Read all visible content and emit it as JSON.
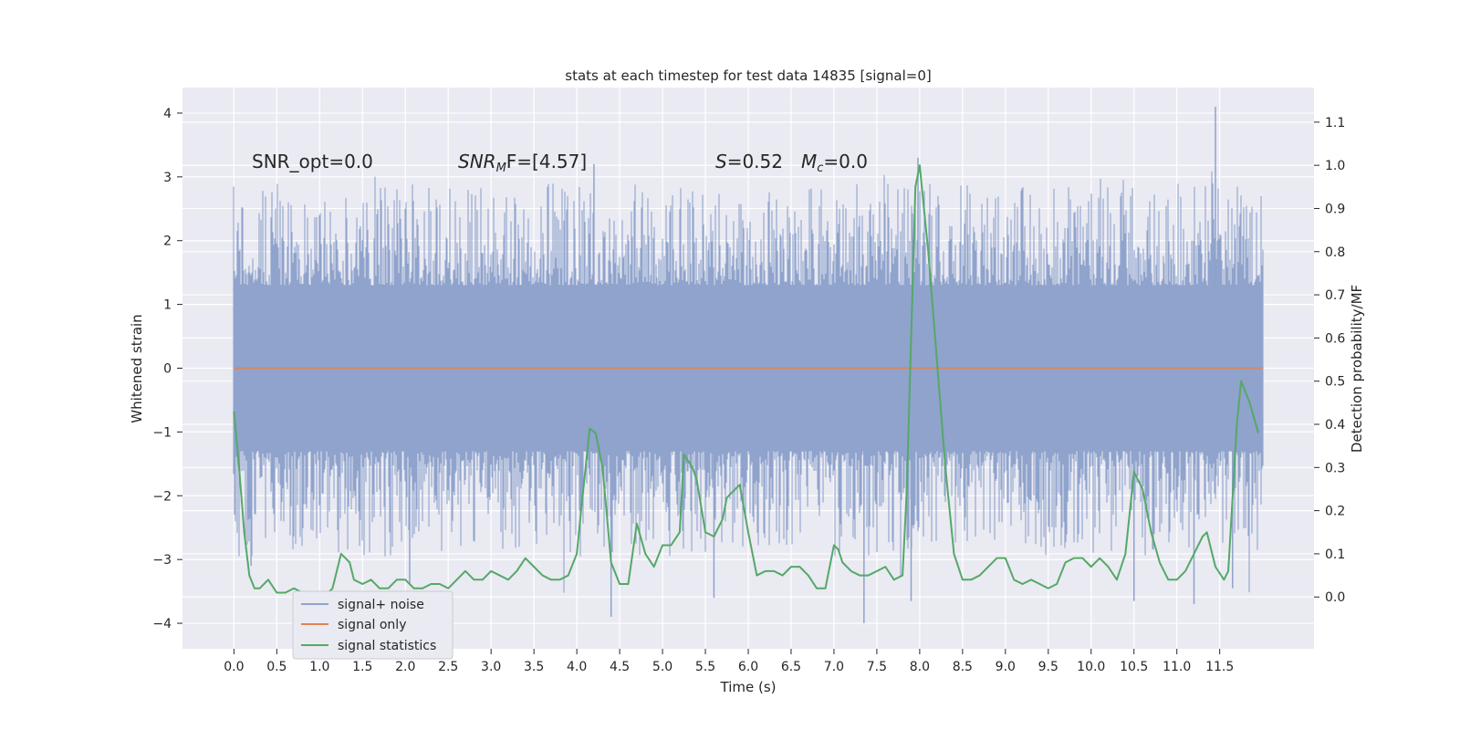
{
  "chart_data": {
    "type": "line",
    "title": "stats at each timestep for test data 14835 [signal=0]",
    "xlabel": "Time (s)",
    "ylabel_left": "Whitened strain",
    "ylabel_right": "Detection probability/MF",
    "xlim": [
      -0.6,
      12.6
    ],
    "ylim_left": [
      -4.4,
      4.4
    ],
    "ylim_right": [
      -0.12,
      1.18
    ],
    "x_ticks": [
      "0.0",
      "0.5",
      "1.0",
      "1.5",
      "2.0",
      "2.5",
      "3.0",
      "3.5",
      "4.0",
      "4.5",
      "5.0",
      "5.5",
      "6.0",
      "6.5",
      "7.0",
      "7.5",
      "8.0",
      "8.5",
      "9.0",
      "9.5",
      "10.0",
      "10.5",
      "11.0",
      "11.5"
    ],
    "y_ticks_left": [
      "4",
      "3",
      "2",
      "1",
      "0",
      "−1",
      "−2",
      "−3",
      "−4"
    ],
    "y_ticks_right": [
      "1.1",
      "1.0",
      "0.9",
      "0.8",
      "0.7",
      "0.6",
      "0.5",
      "0.4",
      "0.3",
      "0.2",
      "0.1",
      "0.0"
    ],
    "grid": true,
    "legend_position": "lower-left",
    "annotations": {
      "snr_opt": "SNR_opt=0.0",
      "snr_mf_main": "SNR",
      "snr_mf_sub": "M",
      "snr_mf_rest": "F=[4.57]",
      "s_italic": "S",
      "s_value": "=0.52",
      "mc_main": "M",
      "mc_sub": "c",
      "mc_value": "=0.0"
    },
    "series": [
      {
        "name": "signal+ noise",
        "color": "#8fa3cc",
        "axis": "left",
        "x_range": [
          0.0,
          12.0
        ],
        "typical_band": [
          -1.3,
          1.3
        ],
        "extreme_band": [
          -4.0,
          4.1
        ],
        "peaks": [
          {
            "x": 11.45,
            "y": 4.1
          },
          {
            "x": 7.98,
            "y": 3.3
          },
          {
            "x": 4.2,
            "y": 3.2
          },
          {
            "x": 4.4,
            "y": -3.9
          },
          {
            "x": 7.35,
            "y": -4.0
          },
          {
            "x": 11.2,
            "y": -3.7
          },
          {
            "x": 10.5,
            "y": -3.65
          },
          {
            "x": 11.65,
            "y": -3.45
          },
          {
            "x": 5.6,
            "y": -3.6
          },
          {
            "x": 7.9,
            "y": -3.65
          },
          {
            "x": 2.05,
            "y": -3.4
          },
          {
            "x": 0.2,
            "y": -3.1
          }
        ]
      },
      {
        "name": "signal only",
        "color": "#dd8452",
        "axis": "left",
        "x": [
          0.0,
          12.0
        ],
        "y": [
          0.0,
          0.0
        ]
      },
      {
        "name": "signal statistics",
        "color": "#55a868",
        "axis": "right",
        "x": [
          0.0,
          0.06,
          0.12,
          0.18,
          0.24,
          0.3,
          0.4,
          0.5,
          0.6,
          0.7,
          0.8,
          0.9,
          1.0,
          1.1,
          1.15,
          1.25,
          1.35,
          1.4,
          1.5,
          1.6,
          1.7,
          1.8,
          1.9,
          2.0,
          2.1,
          2.2,
          2.3,
          2.4,
          2.5,
          2.6,
          2.7,
          2.8,
          2.9,
          3.0,
          3.1,
          3.2,
          3.3,
          3.4,
          3.5,
          3.6,
          3.7,
          3.8,
          3.9,
          4.0,
          4.05,
          4.15,
          4.22,
          4.3,
          4.4,
          4.5,
          4.6,
          4.7,
          4.8,
          4.9,
          5.0,
          5.1,
          5.2,
          5.25,
          5.35,
          5.4,
          5.5,
          5.6,
          5.7,
          5.75,
          5.85,
          5.9,
          6.0,
          6.1,
          6.2,
          6.3,
          6.4,
          6.5,
          6.6,
          6.7,
          6.8,
          6.9,
          7.0,
          7.05,
          7.1,
          7.2,
          7.3,
          7.4,
          7.5,
          7.6,
          7.7,
          7.8,
          7.85,
          7.95,
          8.0,
          8.1,
          8.2,
          8.3,
          8.4,
          8.5,
          8.6,
          8.7,
          8.8,
          8.9,
          9.0,
          9.1,
          9.2,
          9.3,
          9.4,
          9.5,
          9.6,
          9.7,
          9.8,
          9.9,
          10.0,
          10.1,
          10.2,
          10.3,
          10.4,
          10.5,
          10.6,
          10.7,
          10.8,
          10.9,
          11.0,
          11.1,
          11.2,
          11.3,
          11.35,
          11.45,
          11.55,
          11.6,
          11.7,
          11.75,
          11.85,
          11.95
        ],
        "y": [
          0.43,
          0.3,
          0.15,
          0.05,
          0.02,
          0.02,
          0.04,
          0.01,
          0.01,
          0.02,
          0.01,
          0.01,
          0.01,
          0.01,
          0.02,
          0.1,
          0.08,
          0.04,
          0.03,
          0.04,
          0.02,
          0.02,
          0.04,
          0.04,
          0.02,
          0.02,
          0.03,
          0.03,
          0.02,
          0.04,
          0.06,
          0.04,
          0.04,
          0.06,
          0.05,
          0.04,
          0.06,
          0.09,
          0.07,
          0.05,
          0.04,
          0.04,
          0.05,
          0.1,
          0.2,
          0.39,
          0.38,
          0.3,
          0.08,
          0.03,
          0.03,
          0.17,
          0.1,
          0.07,
          0.12,
          0.12,
          0.15,
          0.33,
          0.3,
          0.27,
          0.15,
          0.14,
          0.18,
          0.23,
          0.25,
          0.26,
          0.15,
          0.05,
          0.06,
          0.06,
          0.05,
          0.07,
          0.07,
          0.05,
          0.02,
          0.02,
          0.12,
          0.11,
          0.08,
          0.06,
          0.05,
          0.05,
          0.06,
          0.07,
          0.04,
          0.05,
          0.25,
          0.95,
          1.0,
          0.8,
          0.55,
          0.3,
          0.1,
          0.04,
          0.04,
          0.05,
          0.07,
          0.09,
          0.09,
          0.04,
          0.03,
          0.04,
          0.03,
          0.02,
          0.03,
          0.08,
          0.09,
          0.09,
          0.07,
          0.09,
          0.07,
          0.04,
          0.1,
          0.29,
          0.25,
          0.15,
          0.08,
          0.04,
          0.04,
          0.06,
          0.1,
          0.14,
          0.15,
          0.07,
          0.04,
          0.06,
          0.4,
          0.5,
          0.45,
          0.38
        ]
      }
    ]
  }
}
